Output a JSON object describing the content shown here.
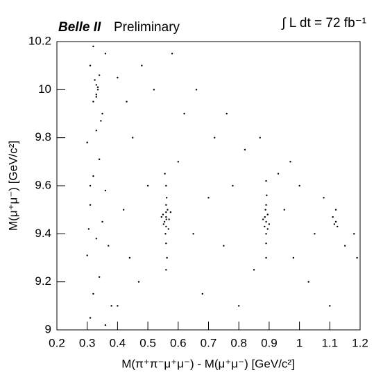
{
  "chart_data": {
    "type": "scatter",
    "title": "Belle II",
    "subtitle": "Preliminary",
    "annotation": "∫ L dt = 72 fb⁻¹",
    "x_label": "M(π⁺π⁻μ⁺μ⁻) - M(μ⁺μ⁻) [GeV/c²]",
    "y_label": "M(μ⁺μ⁻) [GeV/c²]",
    "xlim": [
      0.2,
      1.2
    ],
    "ylim": [
      9,
      10.2
    ],
    "xticks": [
      0.2,
      0.3,
      0.4,
      0.5,
      0.6,
      0.7,
      0.8,
      0.9,
      1,
      1.1,
      1.2
    ],
    "yticks": [
      9,
      9.2,
      9.4,
      9.6,
      9.8,
      10,
      10.2
    ],
    "series": [
      {
        "color": "#000000",
        "x": [
          0.31,
          0.32,
          0.34,
          0.3,
          0.33,
          0.35,
          0.31,
          0.36,
          0.32,
          0.34,
          0.3,
          0.33,
          0.35,
          0.32,
          0.33,
          0.335,
          0.33,
          0.325,
          0.34,
          0.33,
          0.335,
          0.31,
          0.36,
          0.32,
          0.37,
          0.38,
          0.36,
          0.31,
          0.345,
          0.305,
          0.56,
          0.555,
          0.565,
          0.56,
          0.55,
          0.57,
          0.56,
          0.558,
          0.562,
          0.56,
          0.545,
          0.575,
          0.56,
          0.556,
          0.563,
          0.56,
          0.552,
          0.568,
          0.56,
          0.561,
          0.89,
          0.885,
          0.895,
          0.89,
          0.89,
          0.88,
          0.9,
          0.89,
          0.892,
          0.888,
          0.89,
          0.89,
          0.895,
          0.886,
          1.12,
          1.11,
          1.125,
          1.12,
          1.115,
          0.4,
          0.42,
          0.45,
          0.48,
          0.44,
          0.5,
          0.52,
          0.47,
          0.6,
          0.62,
          0.65,
          0.68,
          0.7,
          0.72,
          0.75,
          0.78,
          0.8,
          0.82,
          0.85,
          0.95,
          0.98,
          1.0,
          1.03,
          1.05,
          1.08,
          1.15,
          1.18,
          1.1,
          0.93,
          0.58,
          0.4,
          0.43,
          0.66,
          0.76,
          0.87,
          0.97,
          1.19
        ],
        "y": [
          9.05,
          9.15,
          9.22,
          9.31,
          9.38,
          9.45,
          9.52,
          9.58,
          9.64,
          9.71,
          9.78,
          9.83,
          9.9,
          9.95,
          9.98,
          10.0,
          10.02,
          10.04,
          10.06,
          9.97,
          10.01,
          10.1,
          10.15,
          10.18,
          9.35,
          9.1,
          9.02,
          9.6,
          9.87,
          9.42,
          9.47,
          9.45,
          9.5,
          9.43,
          9.48,
          9.46,
          9.52,
          9.4,
          9.55,
          9.36,
          9.47,
          9.49,
          9.6,
          9.65,
          9.3,
          9.25,
          9.44,
          9.42,
          9.49,
          9.46,
          9.45,
          9.43,
          9.48,
          9.4,
          9.52,
          9.46,
          9.44,
          9.36,
          9.56,
          9.5,
          9.3,
          9.62,
          9.42,
          9.47,
          9.45,
          9.47,
          9.43,
          9.5,
          9.44,
          9.1,
          9.5,
          9.8,
          10.1,
          9.3,
          9.6,
          10.0,
          9.2,
          9.7,
          9.9,
          9.4,
          9.15,
          9.55,
          9.8,
          9.35,
          9.6,
          9.1,
          9.75,
          9.25,
          9.5,
          9.3,
          9.6,
          9.2,
          9.4,
          9.55,
          9.35,
          9.4,
          9.1,
          9.65,
          10.15,
          10.05,
          9.95,
          10.0,
          9.9,
          9.8,
          9.7,
          9.3
        ]
      }
    ]
  }
}
